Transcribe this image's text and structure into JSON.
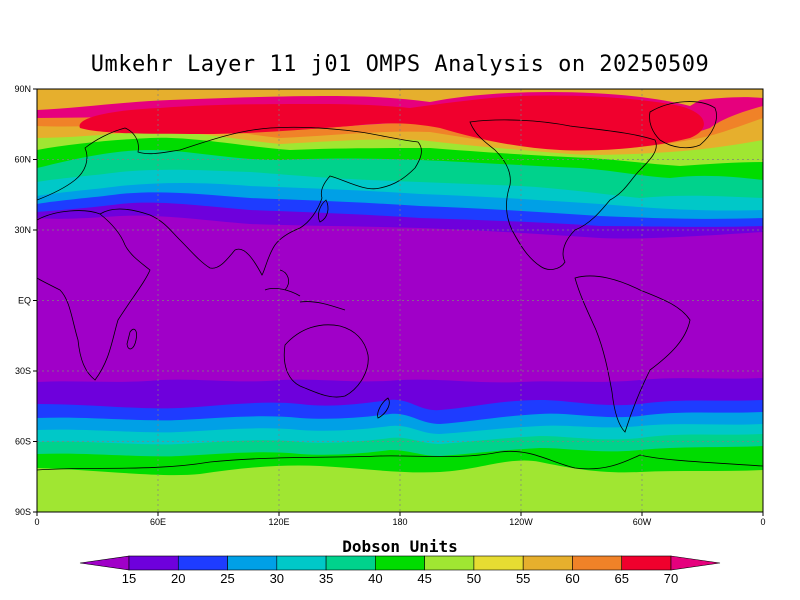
{
  "title": "Umkehr Layer 11 j01 OMPS Analysis on 20250509",
  "map": {
    "lat_labels": [
      "90N",
      "60N",
      "30N",
      "EQ",
      "30S",
      "60S",
      "90S"
    ],
    "lon_labels": [
      "0",
      "60E",
      "120E",
      "180",
      "120W",
      "60W",
      "0"
    ],
    "grid_lines": "dashed"
  },
  "colorbar": {
    "title": "Dobson Units",
    "ticks": [
      "15",
      "20",
      "25",
      "30",
      "35",
      "40",
      "45",
      "50",
      "55",
      "60",
      "65",
      "70"
    ],
    "colors": [
      "#a000c8",
      "#6e00dc",
      "#1e3cff",
      "#00a0e6",
      "#00c8c8",
      "#00d28c",
      "#00dc00",
      "#a0e632",
      "#e6dc32",
      "#e6af2d",
      "#f08228",
      "#f0002d",
      "#e6007d"
    ]
  },
  "field": {
    "units": "Dobson Units",
    "bands": [
      {
        "level": "70",
        "color": "#f0002d"
      },
      {
        "level": "65",
        "color": "#e6007d"
      },
      {
        "level": "60",
        "color": "#f08228"
      },
      {
        "level": "55",
        "color": "#e6af2d"
      },
      {
        "level": "50",
        "color": "#a0e632"
      },
      {
        "level": "45",
        "color": "#00dc00"
      },
      {
        "level": "40",
        "color": "#00d28c"
      },
      {
        "level": "35",
        "color": "#00c8c8"
      },
      {
        "level": "30",
        "color": "#00a0e6"
      },
      {
        "level": "25",
        "color": "#1e3cff"
      },
      {
        "level": "20",
        "color": "#6e00dc"
      },
      {
        "level": "15",
        "color": "#a000c8"
      }
    ]
  }
}
